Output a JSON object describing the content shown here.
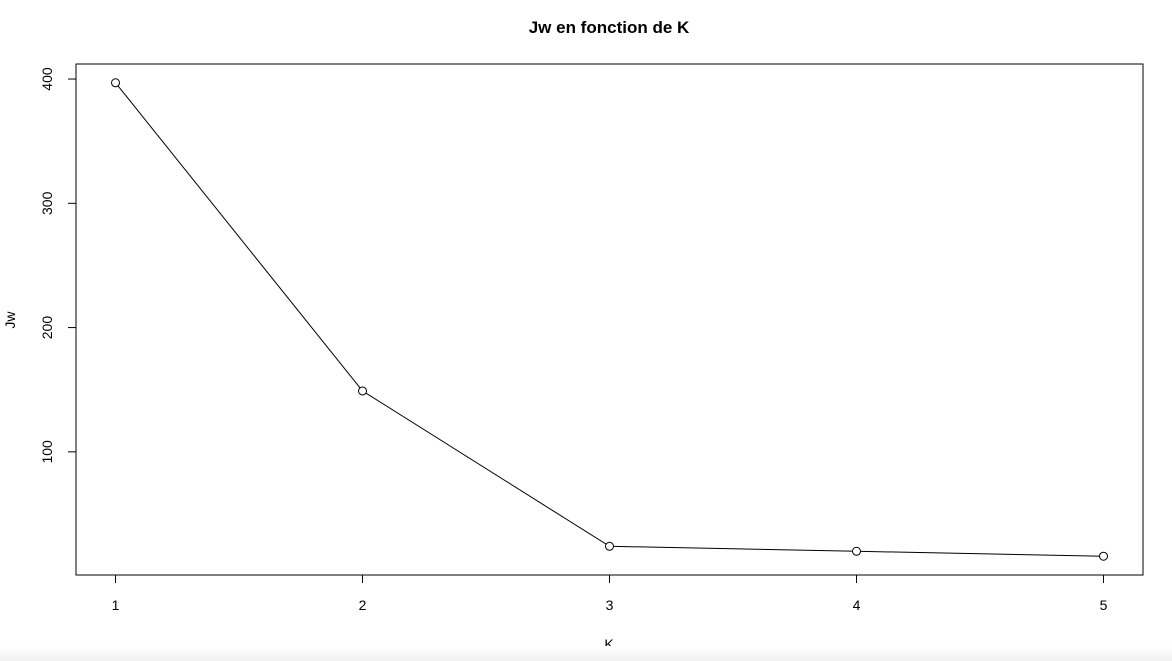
{
  "chart_data": {
    "type": "line",
    "title": "Jw en fonction de K",
    "xlabel": "K",
    "ylabel": "Jw",
    "x": [
      1,
      2,
      3,
      4,
      5
    ],
    "series": [
      {
        "values": [
          397,
          149,
          24,
          20,
          16
        ]
      }
    ],
    "x_ticks": [
      "1",
      "2",
      "3",
      "4",
      "5"
    ],
    "y_ticks": [
      "100",
      "200",
      "300",
      "400"
    ],
    "xlim": [
      0.84,
      5.16
    ],
    "ylim": [
      0.9,
      412.1
    ],
    "grid": false,
    "marker": "open-circle",
    "line_color": "#000000"
  }
}
